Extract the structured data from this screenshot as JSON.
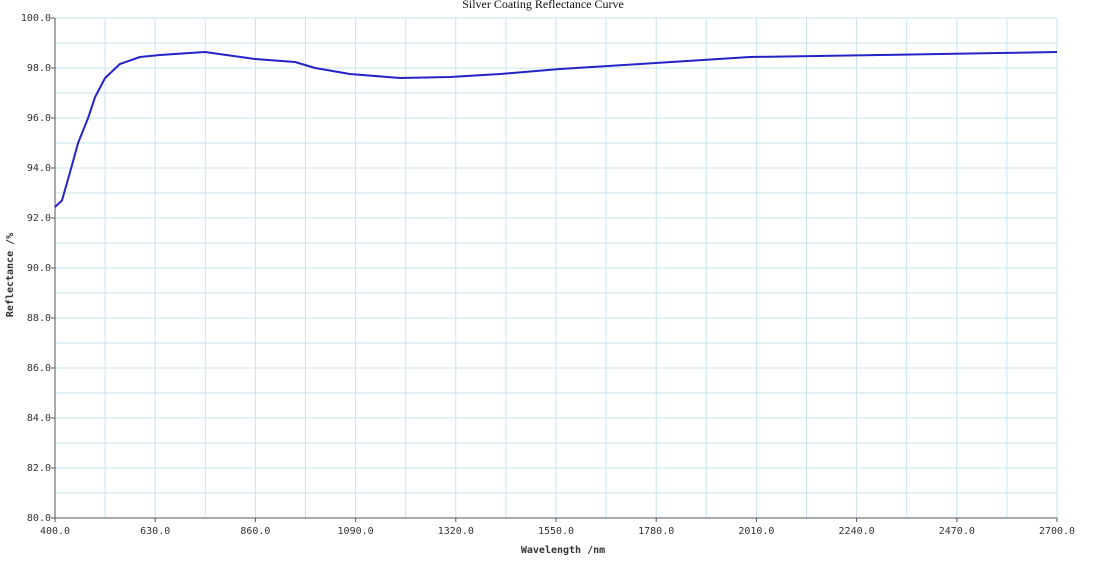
{
  "chart_data": {
    "type": "line",
    "title": "Silver Coating Reflectance Curve",
    "x_label": "Wavelength /nm",
    "y_label": "Reflectance /%",
    "x": [
      400,
      416,
      434,
      453,
      476,
      492,
      515,
      549,
      595,
      641,
      744,
      859,
      951,
      997,
      1077,
      1192,
      1307,
      1422,
      1559,
      1743,
      1995,
      2293,
      2568,
      2700
    ],
    "series": [
      {
        "color": "#2323c8",
        "values": [
          92.44,
          92.7,
          93.8,
          95.0,
          96.0,
          96.84,
          97.6,
          98.16,
          98.44,
          98.52,
          98.64,
          98.36,
          98.24,
          98.0,
          97.76,
          97.6,
          97.64,
          97.76,
          97.96,
          98.16,
          98.44,
          98.52,
          98.6,
          98.64
        ]
      }
    ],
    "xlim": [
      400,
      2700
    ],
    "ylim": [
      80,
      100
    ],
    "xticks": [
      {
        "value": 400,
        "label": "400.0"
      },
      {
        "value": 630,
        "label": "630.0"
      },
      {
        "value": 860,
        "label": "860.0"
      },
      {
        "value": 1090,
        "label": "1090.0"
      },
      {
        "value": 1320,
        "label": "1320.0"
      },
      {
        "value": 1550,
        "label": "1550.0"
      },
      {
        "value": 1780,
        "label": "1780.0"
      },
      {
        "value": 2010,
        "label": "2010.0"
      },
      {
        "value": 2240,
        "label": "2240.0"
      },
      {
        "value": 2470,
        "label": "2470.0"
      },
      {
        "value": 2700,
        "label": "2700.0"
      }
    ],
    "yticks": [
      {
        "value": 80,
        "label": "80.0"
      },
      {
        "value": 82,
        "label": "82.0"
      },
      {
        "value": 84,
        "label": "84.0"
      },
      {
        "value": 86,
        "label": "86.0"
      },
      {
        "value": 88,
        "label": "88.0"
      },
      {
        "value": 90,
        "label": "90.0"
      },
      {
        "value": 92,
        "label": "92.0"
      },
      {
        "value": 94,
        "label": "94.0"
      },
      {
        "value": 96,
        "label": "96.0"
      },
      {
        "value": 98,
        "label": "98.0"
      },
      {
        "value": 100,
        "label": "100.0"
      }
    ],
    "x_minor_ticks": [
      515,
      745,
      975,
      1205,
      1435,
      1665,
      1895,
      2125,
      2355,
      2585
    ],
    "y_minor_ticks": [
      81,
      83,
      85,
      87,
      89,
      91,
      93,
      95,
      97,
      99
    ],
    "grid": true,
    "grid_color": "#c6e4ee"
  }
}
